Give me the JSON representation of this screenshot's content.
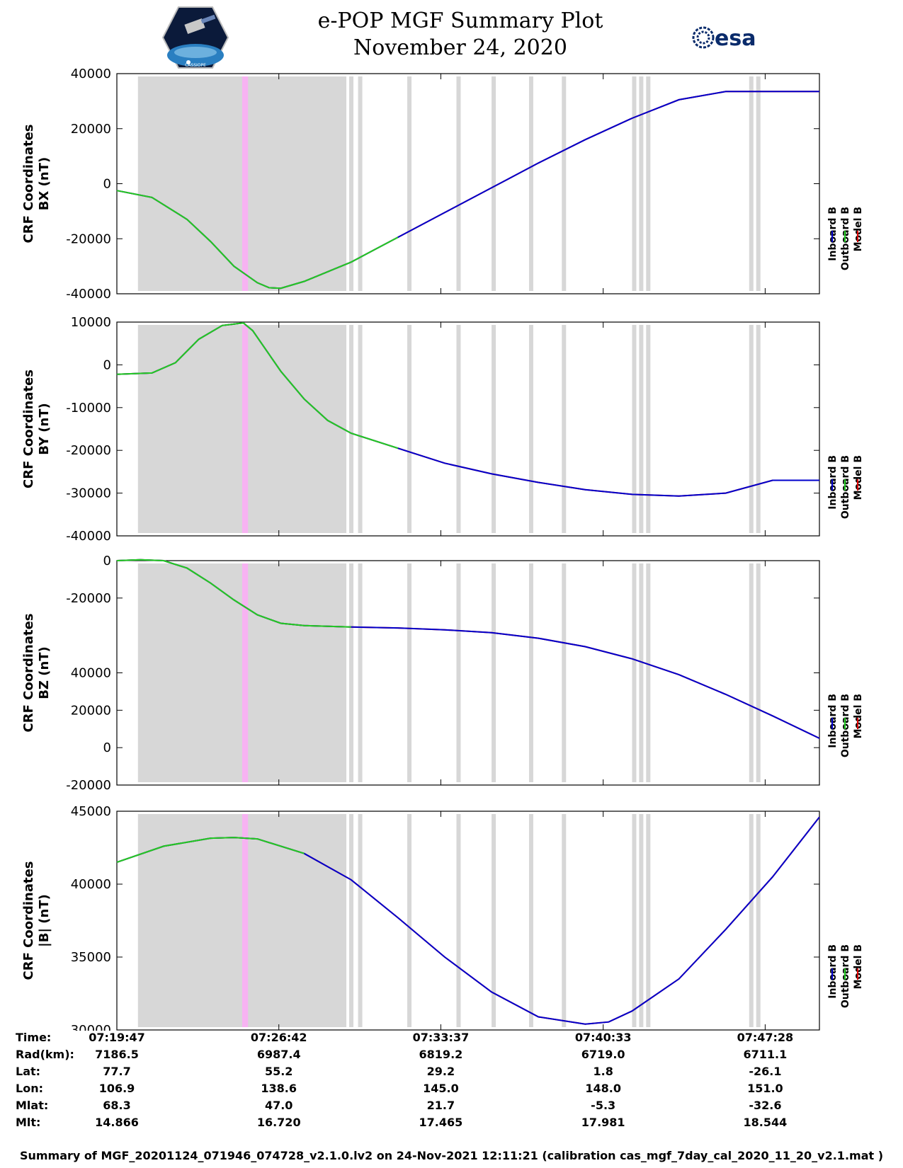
{
  "header": {
    "title": "e-POP MGF Summary Plot",
    "date": "November 24, 2020",
    "left_logo": "cassiope-mission-logo",
    "left_logo_caption": "CASSIOPE",
    "right_logo": "esa-logo",
    "right_logo_text": "esa"
  },
  "colors": {
    "inboard": "#0000cc",
    "outboard": "#22cc22",
    "model": "#dd0000",
    "shade": "#d7d7d7",
    "highlight": "#f7b3f2"
  },
  "legend": {
    "inboard": "Inboard B",
    "outboard": "Outboard B",
    "model": "Model B"
  },
  "chart_data": [
    {
      "type": "line",
      "ylabel_line1": "CRF Coordinates",
      "ylabel_line2": "BX (nT)",
      "ylim": [
        -40000,
        40000
      ],
      "yticks": [
        40000,
        20000,
        0,
        -20000,
        -40000
      ],
      "ytick_labels": [
        "40000",
        "20000",
        "0",
        "-20000",
        "-40000"
      ],
      "x_minutes": [
        0,
        1.5,
        3,
        4,
        5,
        6,
        6.5,
        7,
        8,
        9,
        10,
        11,
        12,
        14,
        16,
        18,
        20,
        22,
        24,
        26,
        28,
        30
      ],
      "values": [
        -2500,
        -5000,
        -13000,
        -21000,
        -30000,
        -36000,
        -37800,
        -38000,
        -35500,
        -32000,
        -28500,
        -24000,
        -19500,
        -10500,
        -1500,
        7500,
        16000,
        23800,
        30500,
        33500,
        33500,
        33500
      ],
      "outboard_until_minute": 13.5
    },
    {
      "type": "line",
      "ylabel_line1": "CRF Coordinates",
      "ylabel_line2": "BY (nT)",
      "ylim": [
        -40000,
        10000
      ],
      "yticks": [
        10000,
        0,
        -10000,
        -20000,
        -30000,
        -40000
      ],
      "ytick_labels": [
        "10000",
        "0",
        "-10000",
        "-20000",
        "-30000",
        "-40000"
      ],
      "x_minutes": [
        0,
        1.5,
        2.5,
        3.5,
        4.5,
        5.4,
        5.8,
        7,
        8,
        9,
        10,
        12,
        14,
        16,
        18,
        20,
        22,
        24,
        26,
        28,
        30
      ],
      "values": [
        -2200,
        -1900,
        500,
        6000,
        9200,
        9800,
        8000,
        -1500,
        -8000,
        -13000,
        -16000,
        -19500,
        -23000,
        -25500,
        -27500,
        -29200,
        -30300,
        -30700,
        -30000,
        -27000,
        -27000
      ],
      "outboard_until_minute": 13.5
    },
    {
      "type": "line",
      "ylabel_line1": "CRF Coordinates",
      "ylabel_line2": "BZ (nT)",
      "ylim": [
        -20000,
        100000
      ],
      "yticks": [
        -20000,
        0,
        20000,
        40000
      ],
      "ytick_labels": [
        "-20000",
        "0",
        "20000",
        "40000"
      ],
      "extra_ticks": [
        100000,
        80000
      ],
      "extra_tick_labels": [
        "0",
        "-20000"
      ],
      "x_minutes": [
        0,
        1,
        2,
        3,
        4,
        5,
        6,
        7,
        8,
        10,
        12,
        14,
        16,
        18,
        20,
        22,
        24,
        26,
        28,
        30
      ],
      "values": [
        100000,
        100500,
        100000,
        96000,
        88000,
        79000,
        71000,
        66500,
        65300,
        64500,
        64000,
        63000,
        61500,
        58500,
        54000,
        47500,
        39000,
        28500,
        17000,
        5000
      ],
      "outboard_until_minute": 10.8
    },
    {
      "type": "line",
      "ylabel_line1": "CRF Coordinates",
      "ylabel_line2": "|B| (nT)",
      "ylim": [
        30000,
        45000
      ],
      "yticks": [
        45000,
        40000,
        35000,
        30000
      ],
      "ytick_labels": [
        "45000",
        "40000",
        "35000",
        "30000"
      ],
      "x_minutes": [
        0,
        2,
        4,
        5,
        6,
        8,
        10,
        12,
        14,
        16,
        18,
        20,
        21,
        22,
        24,
        26,
        28,
        30
      ],
      "values": [
        41500,
        42600,
        43150,
        43200,
        43100,
        42100,
        40300,
        37700,
        35000,
        32600,
        30900,
        30400,
        30550,
        31300,
        33500,
        36900,
        40500,
        44600
      ],
      "outboard_until_minute": 9.8
    }
  ],
  "x_axis": {
    "tick_minutes": [
      0,
      6.9167,
      13.8333,
      20.7667,
      27.6833
    ],
    "range_minutes": [
      0,
      30
    ]
  },
  "shading": {
    "main_start_minute": 0.9,
    "main_end_minute": 9.8,
    "highlight_minutes": [
      5.35,
      5.6
    ],
    "bars_minutes": [
      9.92,
      10.3,
      12.4,
      14.5,
      16.0,
      17.6,
      19.0,
      22.0,
      22.3,
      22.6,
      27.0,
      27.3
    ]
  },
  "info_table": {
    "labels": [
      "Time:",
      "Rad(km):",
      "Lat:",
      "Lon:",
      "Mlat:",
      "Mlt:"
    ],
    "columns": [
      [
        "07:19:47",
        "7186.5",
        "77.7",
        "106.9",
        "68.3",
        "14.866"
      ],
      [
        "07:26:42",
        "6987.4",
        "55.2",
        "138.6",
        "47.0",
        "16.720"
      ],
      [
        "07:33:37",
        "6819.2",
        "29.2",
        "145.0",
        "21.7",
        "17.465"
      ],
      [
        "07:40:33",
        "6719.0",
        "1.8",
        "148.0",
        "-5.3",
        "17.981"
      ],
      [
        "07:47:28",
        "6711.1",
        "-26.1",
        "151.0",
        "-32.6",
        "18.544"
      ]
    ]
  },
  "footer": "Summary of MGF_20201124_071946_074728_v2.1.0.lv2 on 24-Nov-2021 12:11:21 (calibration cas_mgf_7day_cal_2020_11_20_v2.1.mat )"
}
